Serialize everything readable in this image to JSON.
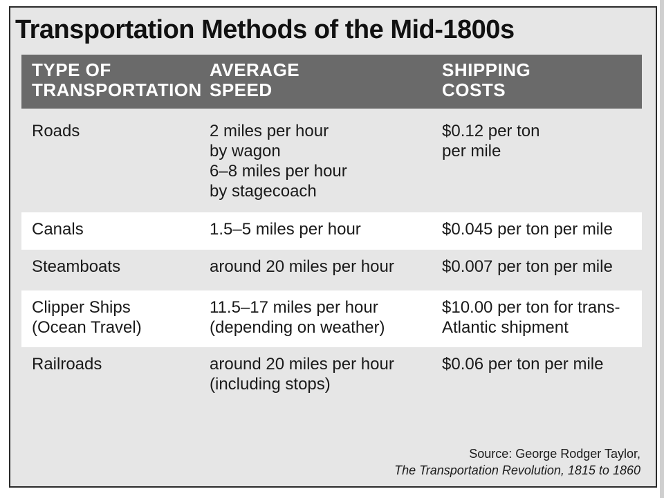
{
  "title": "Transportation Methods of the Mid-1800s",
  "headers": [
    [
      "TYPE OF",
      "TRANSPORTATION"
    ],
    [
      "AVERAGE",
      "SPEED"
    ],
    [
      "SHIPPING",
      "COSTS"
    ]
  ],
  "rows": [
    {
      "type": [
        "Roads"
      ],
      "speed": [
        "2 miles per hour",
        "by wagon",
        "6–8 miles per hour",
        "by stagecoach"
      ],
      "cost": [
        "$0.12 per ton",
        "per mile"
      ]
    },
    {
      "type": [
        "Canals"
      ],
      "speed": [
        "1.5–5 miles per hour"
      ],
      "cost": [
        "$0.045 per ton per mile"
      ]
    },
    {
      "type": [
        "Steamboats"
      ],
      "speed": [
        "around 20 miles per hour"
      ],
      "cost": [
        "$0.007 per ton per mile"
      ]
    },
    {
      "type": [
        "Clipper Ships",
        "(Ocean Travel)"
      ],
      "speed": [
        "11.5–17 miles per hour",
        "(depending on weather)"
      ],
      "cost": [
        "$10.00 per ton for trans-",
        "Atlantic shipment"
      ]
    },
    {
      "type": [
        "Railroads"
      ],
      "speed": [
        "around 20 miles per hour",
        "(including stops)"
      ],
      "cost": [
        "$0.06 per ton per mile"
      ]
    }
  ],
  "source": {
    "line1": "Source:  George Rodger Taylor,",
    "line2": "The Transportation Revolution, 1815 to 1860"
  }
}
